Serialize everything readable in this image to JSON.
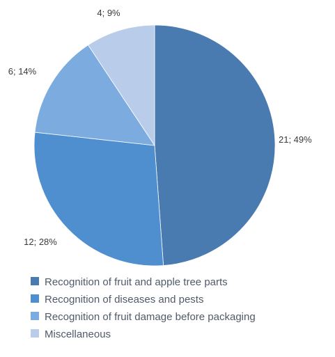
{
  "chart_data": {
    "type": "pie",
    "title": "",
    "categories": [
      "Recognition of fruit and apple tree parts",
      "Recognition of diseases and pests",
      "Recognition of fruit damage before packaging",
      "Miscellaneous"
    ],
    "values": [
      21,
      12,
      6,
      4
    ],
    "percentages": [
      49,
      28,
      14,
      9
    ],
    "data_labels": [
      "21; 49%",
      "12; 28%",
      "6; 14%",
      "4; 9%"
    ],
    "colors": [
      "#4a7bb0",
      "#4f8fd0",
      "#7cabdf",
      "#b9cdea"
    ],
    "legend_position": "bottom",
    "start_angle_deg": 0,
    "direction": "clockwise"
  }
}
